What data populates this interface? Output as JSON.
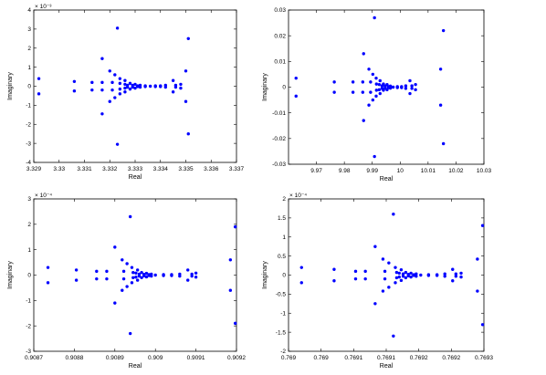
{
  "chart_data": [
    {
      "type": "scatter",
      "title": "",
      "xlabel": "Real",
      "ylabel": "Imaginary",
      "exponent": "× 10⁻³",
      "xlim": [
        3.329,
        3.337
      ],
      "ylim": [
        -4,
        4
      ],
      "xticks": [
        3.329,
        3.33,
        3.331,
        3.332,
        3.333,
        3.334,
        3.335,
        3.336,
        3.337
      ],
      "xtick_labels": [
        "3.329",
        "3.33",
        "3.331",
        "3.332",
        "3.333",
        "3.334",
        "3.335",
        "3.336",
        "3.337"
      ],
      "yticks": [
        -4,
        -3,
        -2,
        -1,
        0,
        1,
        2,
        3,
        4
      ],
      "ytick_labels": [
        "-4",
        "-3",
        "-2",
        "-1",
        "0",
        "1",
        "2",
        "3",
        "4"
      ],
      "grid": false,
      "color": "#0000ff",
      "points": [
        [
          3.3292,
          0.4
        ],
        [
          3.3292,
          -0.4
        ],
        [
          3.3306,
          0.25
        ],
        [
          3.3306,
          -0.25
        ],
        [
          3.3313,
          0.2
        ],
        [
          3.3313,
          -0.2
        ],
        [
          3.3317,
          0.2
        ],
        [
          3.3317,
          -0.2
        ],
        [
          3.3317,
          1.45
        ],
        [
          3.3317,
          -1.45
        ],
        [
          3.332,
          0.8
        ],
        [
          3.332,
          -0.8
        ],
        [
          3.3321,
          0.2
        ],
        [
          3.3321,
          -0.2
        ],
        [
          3.3322,
          0.6
        ],
        [
          3.3322,
          -0.6
        ],
        [
          3.3323,
          3.05
        ],
        [
          3.3323,
          -3.05
        ],
        [
          3.3324,
          0.4
        ],
        [
          3.3324,
          -0.4
        ],
        [
          3.3324,
          0.15
        ],
        [
          3.3324,
          -0.15
        ],
        [
          3.3326,
          0.1
        ],
        [
          3.3326,
          -0.1
        ],
        [
          3.3326,
          0.3
        ],
        [
          3.3326,
          -0.3
        ],
        [
          3.3327,
          0.05
        ],
        [
          3.3327,
          -0.05
        ],
        [
          3.3328,
          0.15
        ],
        [
          3.3328,
          -0.15
        ],
        [
          3.3329,
          0.05
        ],
        [
          3.3329,
          -0.05
        ],
        [
          3.333,
          0.1
        ],
        [
          3.333,
          -0.1
        ],
        [
          3.3331,
          0.02
        ],
        [
          3.3331,
          -0.02
        ],
        [
          3.3332,
          0.05
        ],
        [
          3.3332,
          -0.05
        ],
        [
          3.3334,
          0.02
        ],
        [
          3.3334,
          -0.02
        ],
        [
          3.3336,
          0.0
        ],
        [
          3.3338,
          0.02
        ],
        [
          3.3338,
          -0.02
        ],
        [
          3.334,
          0.02
        ],
        [
          3.334,
          -0.02
        ],
        [
          3.3342,
          0.05
        ],
        [
          3.3342,
          -0.05
        ],
        [
          3.3345,
          0.3
        ],
        [
          3.3345,
          -0.3
        ],
        [
          3.3346,
          0.05
        ],
        [
          3.3346,
          -0.05
        ],
        [
          3.3348,
          0.1
        ],
        [
          3.3348,
          -0.1
        ],
        [
          3.335,
          0.8
        ],
        [
          3.335,
          -0.8
        ],
        [
          3.3351,
          2.5
        ],
        [
          3.3351,
          -2.5
        ]
      ]
    },
    {
      "type": "scatter",
      "title": "",
      "xlabel": "Real",
      "ylabel": "Imaginary",
      "exponent": "",
      "xlim": [
        9.96,
        10.03
      ],
      "ylim": [
        -0.03,
        0.03
      ],
      "xticks": [
        9.97,
        9.98,
        9.99,
        10.0,
        10.01,
        10.02,
        10.03
      ],
      "xtick_labels": [
        "9.97",
        "9.98",
        "9.99",
        "10",
        "10.01",
        "10.02",
        "10.03"
      ],
      "yticks": [
        -0.03,
        -0.02,
        -0.01,
        0,
        0.01,
        0.02,
        0.03
      ],
      "ytick_labels": [
        "-0.03",
        "-0.02",
        "-0.01",
        "0",
        "0.01",
        "0.02",
        "0.03"
      ],
      "grid": false,
      "color": "#0000ff",
      "points": [
        [
          9.9627,
          0.0035
        ],
        [
          9.9627,
          -0.0035
        ],
        [
          9.9764,
          0.002
        ],
        [
          9.9764,
          -0.002
        ],
        [
          9.9831,
          0.002
        ],
        [
          9.9831,
          -0.002
        ],
        [
          9.9866,
          0.002
        ],
        [
          9.9866,
          -0.002
        ],
        [
          9.9869,
          0.013
        ],
        [
          9.9869,
          -0.013
        ],
        [
          9.9888,
          0.007
        ],
        [
          9.9888,
          -0.007
        ],
        [
          9.9894,
          0.002
        ],
        [
          9.9894,
          -0.002
        ],
        [
          9.9902,
          0.005
        ],
        [
          9.9902,
          -0.005
        ],
        [
          9.9908,
          0.027
        ],
        [
          9.9908,
          -0.027
        ],
        [
          9.9914,
          0.0035
        ],
        [
          9.9914,
          -0.0035
        ],
        [
          9.9915,
          0.0012
        ],
        [
          9.9915,
          -0.0012
        ],
        [
          9.9925,
          0.001
        ],
        [
          9.9925,
          -0.001
        ],
        [
          9.9928,
          0.0025
        ],
        [
          9.9928,
          -0.0025
        ],
        [
          9.9935,
          0.0005
        ],
        [
          9.9935,
          -0.0005
        ],
        [
          9.994,
          0.0012
        ],
        [
          9.994,
          -0.0012
        ],
        [
          9.9946,
          0.0004
        ],
        [
          9.9946,
          -0.0004
        ],
        [
          9.9953,
          0.001
        ],
        [
          9.9953,
          -0.001
        ],
        [
          9.9958,
          0.0002
        ],
        [
          9.9958,
          -0.0002
        ],
        [
          9.9965,
          0.0004
        ],
        [
          9.9965,
          -0.0004
        ],
        [
          9.9975,
          0.0
        ],
        [
          9.999,
          0.0002
        ],
        [
          9.999,
          -0.0002
        ],
        [
          10.0005,
          0.0002
        ],
        [
          10.0005,
          -0.0002
        ],
        [
          10.002,
          0.0005
        ],
        [
          10.002,
          -0.0005
        ],
        [
          10.0035,
          0.0025
        ],
        [
          10.0035,
          -0.0025
        ],
        [
          10.0042,
          0.0005
        ],
        [
          10.0042,
          -0.0005
        ],
        [
          10.0055,
          0.001
        ],
        [
          10.0055,
          -0.001
        ],
        [
          10.0145,
          0.007
        ],
        [
          10.0145,
          -0.007
        ],
        [
          10.0155,
          0.022
        ],
        [
          10.0155,
          -0.022
        ]
      ]
    },
    {
      "type": "scatter",
      "title": "",
      "xlabel": "Real",
      "ylabel": "Imaginary",
      "exponent": "× 10⁻⁴",
      "xlim": [
        0.9087,
        0.9092
      ],
      "ylim": [
        -3,
        3
      ],
      "xticks": [
        0.9087,
        0.9088,
        0.9089,
        0.909,
        0.9091,
        0.9092
      ],
      "xtick_labels": [
        "0.9087",
        "0.9088",
        "0.9089",
        "0.909",
        "0.9091",
        "0.9092"
      ],
      "yticks": [
        -3,
        -2,
        -1,
        0,
        1,
        2,
        3
      ],
      "ytick_labels": [
        "-3",
        "-2",
        "-1",
        "0",
        "1",
        "2",
        "3"
      ],
      "grid": false,
      "color": "#0000ff",
      "points": [
        [
          0.908735,
          0.3
        ],
        [
          0.908735,
          -0.3
        ],
        [
          0.908805,
          0.2
        ],
        [
          0.908805,
          -0.2
        ],
        [
          0.908855,
          0.15
        ],
        [
          0.908855,
          -0.15
        ],
        [
          0.90888,
          0.15
        ],
        [
          0.90888,
          -0.15
        ],
        [
          0.9089,
          1.1
        ],
        [
          0.9089,
          -1.1
        ],
        [
          0.908918,
          0.6
        ],
        [
          0.908918,
          -0.6
        ],
        [
          0.908922,
          0.15
        ],
        [
          0.908922,
          -0.15
        ],
        [
          0.90893,
          0.45
        ],
        [
          0.90893,
          -0.45
        ],
        [
          0.908938,
          2.3
        ],
        [
          0.908938,
          -2.3
        ],
        [
          0.908942,
          0.3
        ],
        [
          0.908942,
          -0.3
        ],
        [
          0.908945,
          0.1
        ],
        [
          0.908945,
          -0.1
        ],
        [
          0.908952,
          0.08
        ],
        [
          0.908952,
          -0.08
        ],
        [
          0.908956,
          0.2
        ],
        [
          0.908956,
          -0.2
        ],
        [
          0.90896,
          0.04
        ],
        [
          0.90896,
          -0.04
        ],
        [
          0.908966,
          0.1
        ],
        [
          0.908966,
          -0.1
        ],
        [
          0.908972,
          0.03
        ],
        [
          0.908972,
          -0.03
        ],
        [
          0.908978,
          0.07
        ],
        [
          0.908978,
          -0.07
        ],
        [
          0.908984,
          0.02
        ],
        [
          0.908984,
          -0.02
        ],
        [
          0.90899,
          0.04
        ],
        [
          0.90899,
          -0.04
        ],
        [
          0.909,
          0.0
        ],
        [
          0.90902,
          0.02
        ],
        [
          0.90902,
          -0.02
        ],
        [
          0.90904,
          0.02
        ],
        [
          0.90904,
          -0.02
        ],
        [
          0.90906,
          0.04
        ],
        [
          0.90906,
          -0.04
        ],
        [
          0.90908,
          0.2
        ],
        [
          0.90908,
          -0.2
        ],
        [
          0.90909,
          0.04
        ],
        [
          0.90909,
          -0.04
        ],
        [
          0.9091,
          0.08
        ],
        [
          0.9091,
          -0.08
        ],
        [
          0.909185,
          0.6
        ],
        [
          0.909185,
          -0.6
        ],
        [
          0.909197,
          1.9
        ],
        [
          0.909197,
          -1.9
        ]
      ]
    },
    {
      "type": "scatter",
      "title": "",
      "xlabel": "Real",
      "ylabel": "Imaginary",
      "exponent": "× 10⁻⁴",
      "xlim": [
        0.769,
        0.7693
      ],
      "ylim": [
        -2,
        2
      ],
      "xticks": [
        0.769,
        0.76905,
        0.7691,
        0.76915,
        0.7692,
        0.76925,
        0.7693
      ],
      "xtick_labels": [
        "0.769",
        "0.769",
        "0.7691",
        "0.7691",
        "0.7692",
        "0.7692",
        "0.7693"
      ],
      "yticks": [
        -2,
        -1.5,
        -1,
        -0.5,
        0,
        0.5,
        1,
        1.5,
        2
      ],
      "ytick_labels": [
        "-2",
        "-1.5",
        "-1",
        "-0.5",
        "0",
        "0.5",
        "1",
        "1.5",
        "2"
      ],
      "grid": false,
      "color": "#0000ff",
      "points": [
        [
          0.76902,
          0.2
        ],
        [
          0.76902,
          -0.2
        ],
        [
          0.76907,
          0.15
        ],
        [
          0.76907,
          -0.15
        ],
        [
          0.769103,
          0.1
        ],
        [
          0.769103,
          -0.1
        ],
        [
          0.769118,
          0.1
        ],
        [
          0.769118,
          -0.1
        ],
        [
          0.769133,
          0.75
        ],
        [
          0.769133,
          -0.75
        ],
        [
          0.769145,
          0.42
        ],
        [
          0.769145,
          -0.42
        ],
        [
          0.769148,
          0.1
        ],
        [
          0.769148,
          -0.1
        ],
        [
          0.769154,
          0.32
        ],
        [
          0.769154,
          -0.32
        ],
        [
          0.769161,
          1.6
        ],
        [
          0.769161,
          -1.6
        ],
        [
          0.769164,
          0.2
        ],
        [
          0.769164,
          -0.2
        ],
        [
          0.769166,
          0.07
        ],
        [
          0.769166,
          -0.07
        ],
        [
          0.76917,
          0.05
        ],
        [
          0.76917,
          -0.05
        ],
        [
          0.769173,
          0.14
        ],
        [
          0.769173,
          -0.14
        ],
        [
          0.769176,
          0.03
        ],
        [
          0.769176,
          -0.03
        ],
        [
          0.76918,
          0.07
        ],
        [
          0.76918,
          -0.07
        ],
        [
          0.769184,
          0.02
        ],
        [
          0.769184,
          -0.02
        ],
        [
          0.769188,
          0.05
        ],
        [
          0.769188,
          -0.05
        ],
        [
          0.769192,
          0.01
        ],
        [
          0.769192,
          -0.01
        ],
        [
          0.769196,
          0.03
        ],
        [
          0.769196,
          -0.03
        ],
        [
          0.769203,
          0.0
        ],
        [
          0.769215,
          0.01
        ],
        [
          0.769215,
          -0.01
        ],
        [
          0.769228,
          0.01
        ],
        [
          0.769228,
          -0.01
        ],
        [
          0.76924,
          0.03
        ],
        [
          0.76924,
          -0.03
        ],
        [
          0.769252,
          0.15
        ],
        [
          0.769252,
          -0.15
        ],
        [
          0.769257,
          0.03
        ],
        [
          0.769257,
          -0.03
        ],
        [
          0.769265,
          0.05
        ],
        [
          0.769265,
          -0.05
        ],
        [
          0.76929,
          0.42
        ],
        [
          0.76929,
          -0.42
        ],
        [
          0.769298,
          1.3
        ],
        [
          0.769298,
          -1.3
        ]
      ]
    }
  ]
}
